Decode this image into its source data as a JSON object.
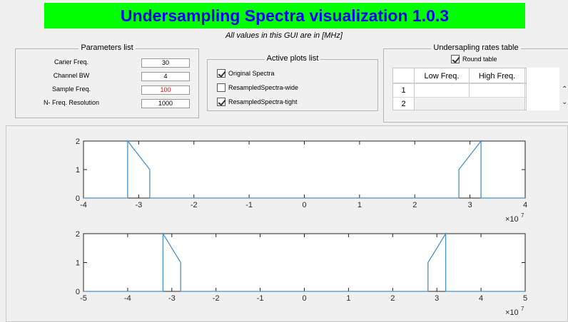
{
  "app": {
    "title": "Undersampling Spectra visualization 1.0.3",
    "units_note": "All values in this GUI are in [MHz]"
  },
  "parameters": {
    "title": "Parameters list",
    "items": [
      {
        "label": "Carier Freq.",
        "value": "30",
        "color": "#000000"
      },
      {
        "label": "Channel BW",
        "value": "4",
        "color": "#000000"
      },
      {
        "label": "Sample Freq.",
        "value": "100",
        "color": "#ff0000"
      },
      {
        "label": "N- Freq. Resolution",
        "value": "1000",
        "color": "#000000"
      }
    ]
  },
  "active_plots": {
    "title": "Active plots list",
    "items": [
      {
        "label": "Original Spectra",
        "checked": true
      },
      {
        "label": "ResampledSpectra-wide",
        "checked": false
      },
      {
        "label": "ResampledSpectra-tight",
        "checked": true
      }
    ]
  },
  "rates_table": {
    "title": "Undersapling rates table",
    "round_label": "Round table",
    "round_checked": true,
    "columns": [
      "Low Freq.",
      "High Freq."
    ],
    "rows": [
      {
        "index": "1",
        "low": "",
        "high": ""
      },
      {
        "index": "2",
        "low": "",
        "high": ""
      }
    ]
  },
  "chart_data": [
    {
      "type": "line",
      "title": "",
      "xlabel": "",
      "ylabel": "",
      "xlim": [
        -4,
        4
      ],
      "ylim": [
        0,
        2
      ],
      "x_exponent_label": "×10",
      "x_exponent": "7",
      "x_ticks": [
        "-4",
        "-3",
        "-2",
        "-1",
        "0",
        "1",
        "2",
        "3",
        "4"
      ],
      "y_ticks": [
        "0",
        "1",
        "2"
      ],
      "line_color": "#4a90c8",
      "series": [
        {
          "x": [
            -4,
            -3.2,
            -3.2,
            -2.8,
            -2.8,
            2.8,
            2.8,
            3.2,
            3.2,
            4
          ],
          "y": [
            0,
            0,
            2,
            1,
            0,
            0,
            1,
            2,
            0,
            0
          ]
        }
      ]
    },
    {
      "type": "line",
      "title": "",
      "xlabel": "",
      "ylabel": "",
      "xlim": [
        -5,
        5
      ],
      "ylim": [
        0,
        2
      ],
      "x_exponent_label": "×10",
      "x_exponent": "7",
      "x_ticks": [
        "-5",
        "-4",
        "-3",
        "-2",
        "-1",
        "0",
        "1",
        "2",
        "3",
        "4",
        "5"
      ],
      "y_ticks": [
        "0",
        "1",
        "2"
      ],
      "line_color": "#4a90c8",
      "series": [
        {
          "x": [
            -5,
            -3.2,
            -3.2,
            -2.8,
            -2.8,
            2.8,
            2.8,
            3.2,
            3.2,
            5
          ],
          "y": [
            0,
            0,
            2,
            1,
            0,
            0,
            1,
            2,
            0,
            0
          ]
        }
      ]
    }
  ]
}
